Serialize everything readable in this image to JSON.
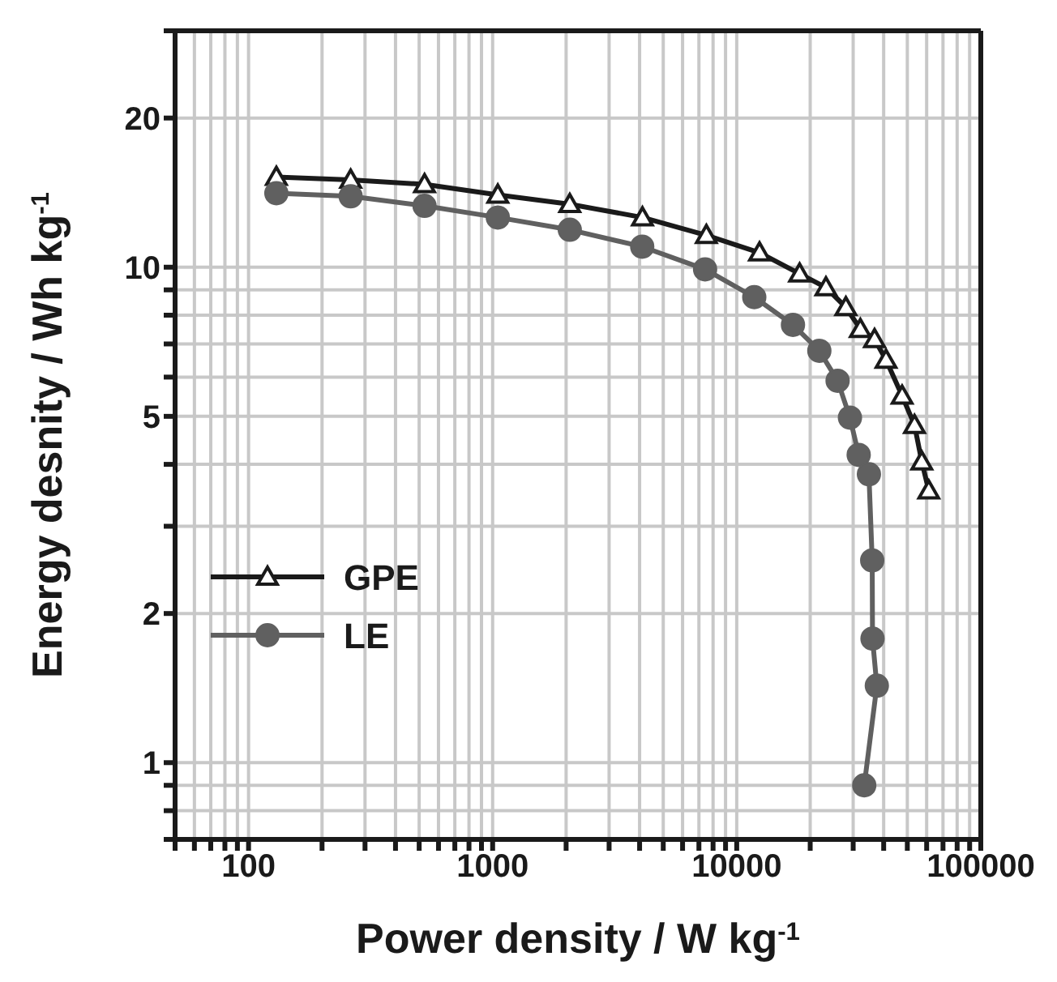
{
  "chart_data": {
    "type": "line",
    "xlabel": "Power density / W kg$^{-1}$",
    "ylabel": "Energy desnity / Wh kg$^{-1}$",
    "log": "xy",
    "grid": true,
    "legend": "left",
    "xlim": [
      50,
      100000
    ],
    "xticks": [
      {
        "value": 50,
        "label": null
      },
      {
        "value": 60,
        "label": null
      },
      {
        "value": 70,
        "label": null
      },
      {
        "value": 80,
        "label": null
      },
      {
        "value": 90,
        "label": null
      },
      100,
      {
        "value": 200,
        "label": null
      },
      {
        "value": 300,
        "label": null
      },
      {
        "value": 400,
        "label": null
      },
      {
        "value": 500,
        "label": null
      },
      {
        "value": 600,
        "label": null
      },
      {
        "value": 700,
        "label": null
      },
      {
        "value": 800,
        "label": null
      },
      {
        "value": 900,
        "label": null
      },
      1000,
      {
        "value": 2000,
        "label": null
      },
      {
        "value": 3000,
        "label": null
      },
      {
        "value": 4000,
        "label": null
      },
      {
        "value": 5000,
        "label": null
      },
      {
        "value": 6000,
        "label": null
      },
      {
        "value": 7000,
        "label": null
      },
      {
        "value": 8000,
        "label": null
      },
      {
        "value": 9000,
        "label": null
      },
      10000,
      {
        "value": 20000,
        "label": null
      },
      {
        "value": 30000,
        "label": null
      },
      {
        "value": 40000,
        "label": null
      },
      {
        "value": 50000,
        "label": null
      },
      {
        "value": 60000,
        "label": null
      },
      {
        "value": 70000,
        "label": null
      },
      {
        "value": 80000,
        "label": null
      },
      {
        "value": 90000,
        "label": null
      },
      100000
    ],
    "ylim": [
      0.7,
      30
    ],
    "yticks": [
      {
        "value": 0.7,
        "label": null
      },
      {
        "value": 0.8,
        "label": null
      },
      {
        "value": 0.9,
        "label": null
      },
      1,
      2,
      {
        "value": 3,
        "label": null
      },
      {
        "value": 4,
        "label": null
      },
      5,
      {
        "value": 6,
        "label": null
      },
      {
        "value": 7,
        "label": null
      },
      {
        "value": 8,
        "label": null
      },
      {
        "value": 9,
        "label": null
      },
      10,
      20,
      {
        "value": 30,
        "label": null
      }
    ],
    "series": [
      {
        "name": "GPE",
        "color": "#1a1a1a",
        "marker": "triangle",
        "x": [
          130,
          262,
          526,
          1050,
          2070,
          4110,
          7510,
          12400,
          18100,
          23200,
          28000,
          32100,
          36700,
          40900,
          47600,
          53500,
          57300,
          61200
        ],
        "values": [
          15.2,
          15.0,
          14.7,
          14.0,
          13.4,
          12.6,
          11.6,
          10.7,
          9.7,
          9.1,
          8.3,
          7.5,
          7.15,
          6.5,
          5.5,
          4.8,
          4.05,
          3.54
        ]
      },
      {
        "name": "LE",
        "color": "#606060",
        "marker": "circle",
        "x": [
          130,
          262,
          526,
          1050,
          2070,
          4100,
          7420,
          11800,
          17000,
          21800,
          25900,
          29100,
          31600,
          34800,
          35900,
          36000,
          37500,
          33300
        ],
        "values": [
          14.1,
          13.9,
          13.3,
          12.6,
          11.9,
          11.0,
          9.9,
          8.7,
          7.65,
          6.78,
          5.9,
          4.97,
          4.18,
          3.82,
          2.56,
          1.78,
          1.43,
          0.9
        ]
      }
    ]
  }
}
